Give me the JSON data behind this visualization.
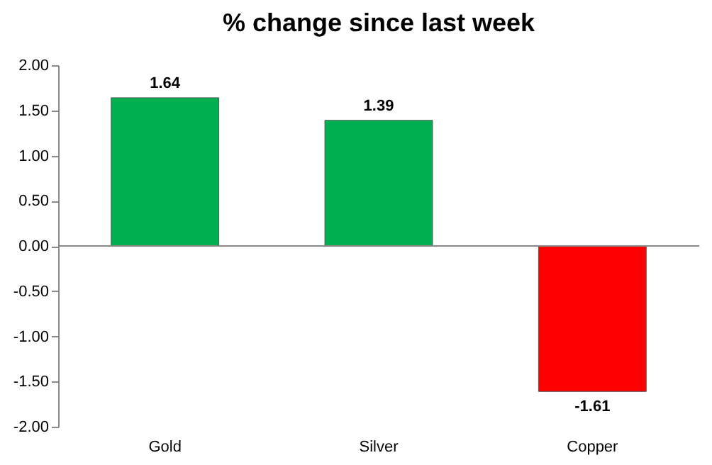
{
  "chart_data": {
    "type": "bar",
    "title": "% change since last week",
    "categories": [
      "Gold",
      "Silver",
      "Copper"
    ],
    "values": [
      1.64,
      1.39,
      -1.61
    ],
    "colors": [
      "#00b050",
      "#00b050",
      "#ff0000"
    ],
    "ylim": [
      -2,
      2
    ],
    "yticks": [
      {
        "value": -2,
        "label": "-2.00"
      },
      {
        "value": -1.5,
        "label": "-1.50"
      },
      {
        "value": -1,
        "label": "-1.00"
      },
      {
        "value": -0.5,
        "label": "-0.50"
      },
      {
        "value": 0,
        "label": "0.00"
      },
      {
        "value": 0.5,
        "label": "0.50"
      },
      {
        "value": 1,
        "label": "1.00"
      },
      {
        "value": 1.5,
        "label": "1.50"
      },
      {
        "value": 2,
        "label": "2.00"
      }
    ],
    "data_labels": true,
    "legend": false
  }
}
